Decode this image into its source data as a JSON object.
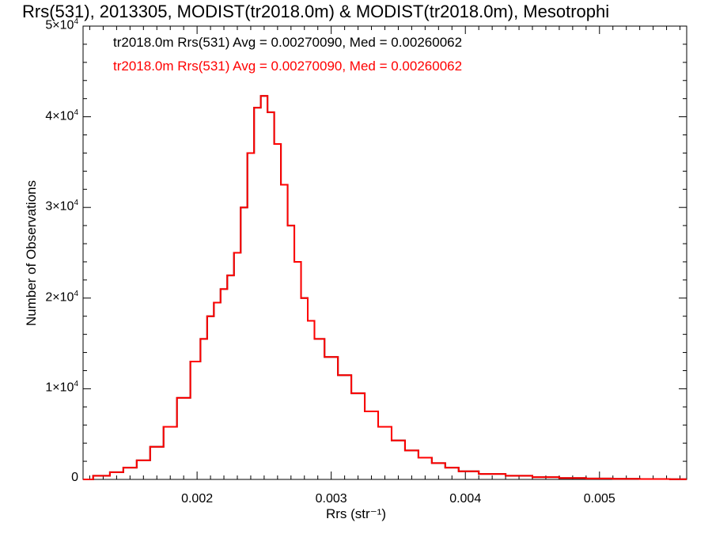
{
  "chart_data": {
    "type": "histogram",
    "title": "Rrs(531), 2013305, MODIST(tr2018.0m) & MODIST(tr2018.0m), Mesotrophi",
    "xlabel": "Rrs (str⁻¹)",
    "ylabel": "Number of Observations",
    "xlim": [
      0.00115,
      0.00565
    ],
    "ylim": [
      0,
      50000
    ],
    "x_ticks": [
      {
        "value": 0.002,
        "label": "0.002"
      },
      {
        "value": 0.003,
        "label": "0.003"
      },
      {
        "value": 0.004,
        "label": "0.004"
      },
      {
        "value": 0.005,
        "label": "0.005"
      }
    ],
    "y_ticks": [
      {
        "value": 0,
        "base": "0",
        "exp": ""
      },
      {
        "value": 10000,
        "base": "1×10",
        "exp": "4"
      },
      {
        "value": 20000,
        "base": "2×10",
        "exp": "4"
      },
      {
        "value": 30000,
        "base": "3×10",
        "exp": "4"
      },
      {
        "value": 40000,
        "base": "4×10",
        "exp": "4"
      },
      {
        "value": 50000,
        "base": "5×10",
        "exp": "4"
      }
    ],
    "annotations": [
      {
        "text": "tr2018.0m Rrs(531) Avg = 0.00270090, Med = 0.00260062",
        "color": "#000000"
      },
      {
        "text": "tr2018.0m Rrs(531) Avg = 0.00270090, Med = 0.00260062",
        "color": "#ff0000"
      }
    ],
    "series": [
      {
        "color": "#000000",
        "x": [
          0.00115,
          0.0013,
          0.0014,
          0.0015,
          0.0016,
          0.0017,
          0.0018,
          0.0019,
          0.002,
          0.00205,
          0.0021,
          0.00215,
          0.0022,
          0.00225,
          0.0023,
          0.00235,
          0.0024,
          0.00245,
          0.0025,
          0.00255,
          0.0026,
          0.00265,
          0.0027,
          0.00275,
          0.0028,
          0.00285,
          0.0029,
          0.003,
          0.0031,
          0.0032,
          0.0033,
          0.0034,
          0.0035,
          0.0036,
          0.0037,
          0.0038,
          0.0039,
          0.004,
          0.0042,
          0.0044,
          0.0046,
          0.0048,
          0.005,
          0.0052,
          0.0054,
          0.00565
        ],
        "values": [
          0,
          400,
          800,
          1300,
          2100,
          3600,
          5800,
          9000,
          13000,
          15500,
          18000,
          19500,
          21000,
          22500,
          25000,
          30000,
          36000,
          41000,
          42300,
          40500,
          37000,
          32500,
          28000,
          24000,
          20000,
          17500,
          15500,
          13500,
          11500,
          9500,
          7500,
          5800,
          4300,
          3200,
          2400,
          1800,
          1300,
          900,
          600,
          400,
          250,
          150,
          100,
          60,
          40,
          20
        ]
      },
      {
        "color": "#ff0000",
        "x": [
          0.00115,
          0.0013,
          0.0014,
          0.0015,
          0.0016,
          0.0017,
          0.0018,
          0.0019,
          0.002,
          0.00205,
          0.0021,
          0.00215,
          0.0022,
          0.00225,
          0.0023,
          0.00235,
          0.0024,
          0.00245,
          0.0025,
          0.00255,
          0.0026,
          0.00265,
          0.0027,
          0.00275,
          0.0028,
          0.00285,
          0.0029,
          0.003,
          0.0031,
          0.0032,
          0.0033,
          0.0034,
          0.0035,
          0.0036,
          0.0037,
          0.0038,
          0.0039,
          0.004,
          0.0042,
          0.0044,
          0.0046,
          0.0048,
          0.005,
          0.0052,
          0.0054,
          0.00565
        ],
        "values": [
          0,
          400,
          800,
          1300,
          2100,
          3600,
          5800,
          9000,
          13000,
          15500,
          18000,
          19500,
          21000,
          22500,
          25000,
          30000,
          36000,
          41000,
          42300,
          40500,
          37000,
          32500,
          28000,
          24000,
          20000,
          17500,
          15500,
          13500,
          11500,
          9500,
          7500,
          5800,
          4300,
          3200,
          2400,
          1800,
          1300,
          900,
          600,
          400,
          250,
          150,
          100,
          60,
          40,
          20
        ]
      }
    ]
  }
}
